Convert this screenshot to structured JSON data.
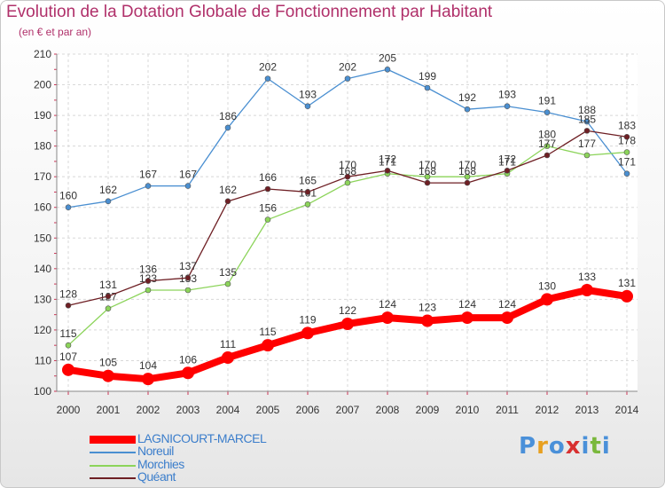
{
  "title": "Evolution de la Dotation Globale de Fonctionnement par Habitant",
  "subtitle": "(en € et par an)",
  "logo": {
    "text": "Proxiti",
    "colors": [
      "#4a90d9",
      "#e8a020",
      "#4a90d9",
      "#d83030",
      "#4a90d9",
      "#7ab83c",
      "#4a90d9"
    ]
  },
  "chart_data": {
    "type": "line",
    "title": "Evolution de la Dotation Globale de Fonctionnement par Habitant",
    "subtitle": "(en € et par an)",
    "xlabel": "",
    "ylabel": "",
    "ylim": [
      100,
      210
    ],
    "yticks": [
      100,
      110,
      120,
      130,
      140,
      150,
      160,
      170,
      180,
      190,
      200,
      210
    ],
    "grid": true,
    "categories": [
      "2000",
      "2001",
      "2002",
      "2003",
      "2004",
      "2005",
      "2006",
      "2007",
      "2008",
      "2009",
      "2010",
      "2011",
      "2012",
      "2013",
      "2014"
    ],
    "series": [
      {
        "name": "Noreuil",
        "color": "#4a8fd1",
        "values": [
          160,
          162,
          167,
          167,
          186,
          202,
          193,
          202,
          205,
          199,
          192,
          193,
          191,
          188,
          171
        ]
      },
      {
        "name": "Morchies",
        "color": "#8cd45a",
        "values": [
          115,
          127,
          133,
          133,
          135,
          156,
          161,
          168,
          171,
          170,
          170,
          171,
          180,
          177,
          178
        ]
      },
      {
        "name": "Quéant",
        "color": "#6e1f24",
        "values": [
          128,
          131,
          136,
          137,
          162,
          166,
          165,
          170,
          172,
          168,
          168,
          172,
          177,
          185,
          183
        ]
      },
      {
        "name": "LAGNICOURT-MARCEL",
        "color": "#ff0000",
        "values": [
          107,
          105,
          104,
          106,
          111,
          115,
          119,
          122,
          124,
          123,
          124,
          124,
          130,
          133,
          131
        ]
      }
    ],
    "legend": [
      "LAGNICOURT-MARCEL",
      "Noreuil",
      "Morchies",
      "Quéant"
    ],
    "legend_position": "bottom-left"
  }
}
